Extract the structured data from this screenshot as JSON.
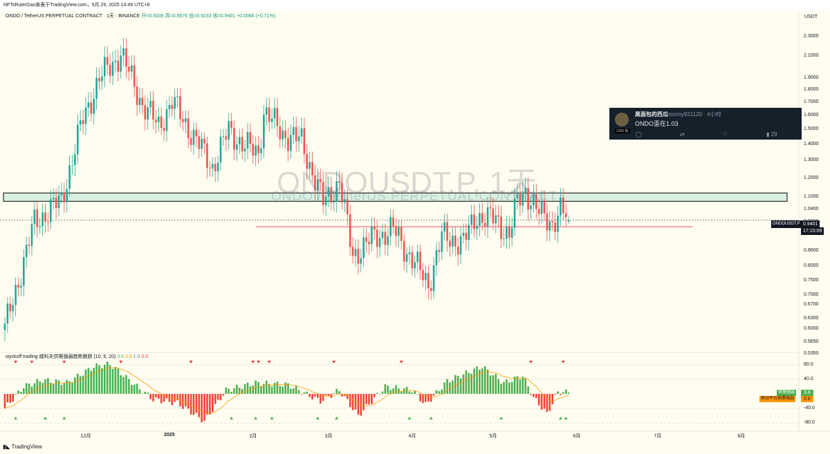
{
  "header": {
    "publish_line": "NFTsRulerGao发表于TradingView.com，5月 29, 2025 14:49 UTC+8",
    "symbol_name": "ONDO / TetherUS PERPETUAL CONTRACT · 1天 · BINANCE",
    "ohlc": "开=0.9335 高=0.9576 低=0.9233 收=0.9401 +0.0066 (+0.71%)"
  },
  "watermark": {
    "ticker": "ONDOUSDT.P, 1天",
    "name": "ONDO / TetherUS PERPETUAL CONTRACT"
  },
  "price_axis": {
    "currency": "USDT",
    "ticks": [
      "2.3000",
      "2.1000",
      "1.9000",
      "1.8000",
      "1.7000",
      "1.6000",
      "1.5000",
      "1.4000",
      "1.3000",
      "1.2000",
      "1.1000",
      "1.0400",
      "0.9800",
      "0.8600",
      "0.8000",
      "0.7500",
      "0.7000",
      "0.6700",
      "0.6300",
      "0.6000",
      "0.5650",
      "0.5350"
    ],
    "current_symbol": "ONDOUSDT.P",
    "current_price": "0.9401",
    "countdown": "17:10:09"
  },
  "time_axis": {
    "ticks": [
      "12月",
      "2025",
      "2月",
      "3月",
      "4月",
      "5月",
      "6月",
      "7月",
      "8月"
    ]
  },
  "indicator": {
    "title": "wyckoff trading 威科夫供需强弱趋势跟踪 (10, 6, 20)",
    "v1": "3.6",
    "v2": "0.8",
    "v3": "1.0",
    "v4": "0.0",
    "ticks": [
      "80.0",
      "40.0",
      "-40.0",
      "-80.0"
    ],
    "supply_label": "供需强弱",
    "supply_value": "3.6",
    "ma_label": "移动平均供需强弱",
    "ma_value": "0.8"
  },
  "tweet": {
    "name": "黑面包的西瓜",
    "handle": "@toomy921120 · 4小时",
    "text": "ONDO歪在1.03",
    "avatar_count": "1205 枚",
    "views": "29",
    "reply_icon": "reply-icon",
    "retweet_icon": "retweet-icon",
    "like_icon": "heart-icon",
    "views_icon": "bar-chart-icon"
  },
  "footer": {
    "brand": "TradingView"
  },
  "colors": {
    "up": "#26a69a",
    "down": "#ef5350",
    "zone": "#bfe6d6",
    "support_line": "#f23645",
    "bull_bar": "#4caf50",
    "bear_bar": "#f44336"
  },
  "chart_data": {
    "type": "candlestick",
    "interval": "1天",
    "exchange": "BINANCE",
    "y_scale": "log",
    "ylim": [
      0.52,
      2.35
    ],
    "x_range": [
      "2024-11-01",
      "2025-08-31"
    ],
    "anchors": [
      {
        "date": "2024-11-01",
        "close": 0.57
      },
      {
        "date": "2024-11-12",
        "close": 0.93
      },
      {
        "date": "2024-11-22",
        "close": 1.03
      },
      {
        "date": "2024-11-30",
        "close": 1.5
      },
      {
        "date": "2024-12-06",
        "close": 1.8
      },
      {
        "date": "2024-12-14",
        "close": 2.02
      },
      {
        "date": "2024-12-22",
        "close": 1.6
      },
      {
        "date": "2024-12-28",
        "close": 1.45
      },
      {
        "date": "2025-01-02",
        "close": 1.62
      },
      {
        "date": "2025-01-10",
        "close": 1.38
      },
      {
        "date": "2025-01-17",
        "close": 1.2
      },
      {
        "date": "2025-01-23",
        "close": 1.42
      },
      {
        "date": "2025-01-29",
        "close": 1.32
      },
      {
        "date": "2025-02-03",
        "close": 1.28
      },
      {
        "date": "2025-02-05",
        "close": 1.55
      },
      {
        "date": "2025-02-12",
        "close": 1.4
      },
      {
        "date": "2025-02-19",
        "close": 1.35
      },
      {
        "date": "2025-02-27",
        "close": 1.02
      },
      {
        "date": "2025-03-05",
        "close": 1.12
      },
      {
        "date": "2025-03-10",
        "close": 0.8
      },
      {
        "date": "2025-03-18",
        "close": 0.87
      },
      {
        "date": "2025-03-25",
        "close": 0.9
      },
      {
        "date": "2025-03-31",
        "close": 0.8
      },
      {
        "date": "2025-04-07",
        "close": 0.7
      },
      {
        "date": "2025-04-12",
        "close": 0.87
      },
      {
        "date": "2025-04-20",
        "close": 0.85
      },
      {
        "date": "2025-04-25",
        "close": 0.96
      },
      {
        "date": "2025-05-02",
        "close": 0.94
      },
      {
        "date": "2025-05-07",
        "close": 0.88
      },
      {
        "date": "2025-05-10",
        "close": 1.02
      },
      {
        "date": "2025-05-13",
        "close": 1.08
      },
      {
        "date": "2025-05-18",
        "close": 0.97
      },
      {
        "date": "2025-05-23",
        "close": 0.93
      },
      {
        "date": "2025-05-26",
        "close": 0.98
      },
      {
        "date": "2025-05-29",
        "close": 0.9401
      }
    ],
    "last_candle": {
      "open": 0.9335,
      "high": 0.9576,
      "low": 0.9233,
      "close": 0.9401,
      "change": 0.0066,
      "change_pct": 0.71
    },
    "resistance_zone": [
      1.025,
      1.065
    ],
    "support_line": 0.912,
    "indicator_series": {
      "name": "wyckoff trading 威科夫供需强弱趋势跟踪",
      "ylim": [
        -95,
        95
      ],
      "anchors": [
        {
          "date": "2024-11-01",
          "value": -40
        },
        {
          "date": "2024-11-08",
          "value": 20
        },
        {
          "date": "2024-11-15",
          "value": 38
        },
        {
          "date": "2024-11-24",
          "value": 30
        },
        {
          "date": "2024-12-04",
          "value": 75
        },
        {
          "date": "2024-12-10",
          "value": 82
        },
        {
          "date": "2024-12-20",
          "value": 20
        },
        {
          "date": "2024-12-26",
          "value": -15
        },
        {
          "date": "2025-01-04",
          "value": -25
        },
        {
          "date": "2025-01-14",
          "value": -75
        },
        {
          "date": "2025-01-22",
          "value": 10
        },
        {
          "date": "2025-02-02",
          "value": 30
        },
        {
          "date": "2025-02-14",
          "value": 25
        },
        {
          "date": "2025-02-26",
          "value": -20
        },
        {
          "date": "2025-03-05",
          "value": 10
        },
        {
          "date": "2025-03-12",
          "value": -60
        },
        {
          "date": "2025-03-22",
          "value": 20
        },
        {
          "date": "2025-04-01",
          "value": 10
        },
        {
          "date": "2025-04-06",
          "value": -30
        },
        {
          "date": "2025-04-14",
          "value": 35
        },
        {
          "date": "2025-04-27",
          "value": 75
        },
        {
          "date": "2025-05-05",
          "value": 30
        },
        {
          "date": "2025-05-12",
          "value": 50
        },
        {
          "date": "2025-05-16",
          "value": -10
        },
        {
          "date": "2025-05-21",
          "value": -55
        },
        {
          "date": "2025-05-25",
          "value": 5
        },
        {
          "date": "2025-05-29",
          "value": 3.6
        }
      ],
      "bear_markers": [
        "2024-11-05",
        "2024-11-11",
        "2024-11-23",
        "2024-12-14",
        "2025-01-09",
        "2025-02-01",
        "2025-02-03",
        "2025-02-07",
        "2025-03-03",
        "2025-03-28",
        "2025-05-15",
        "2025-05-27"
      ],
      "bull_markers": [
        "2024-11-05",
        "2024-11-16",
        "2024-11-23",
        "2025-01-24",
        "2025-02-02",
        "2025-02-08",
        "2025-02-25",
        "2025-03-04",
        "2025-03-31",
        "2025-04-08",
        "2025-05-04",
        "2025-05-26",
        "2025-05-28"
      ]
    }
  }
}
